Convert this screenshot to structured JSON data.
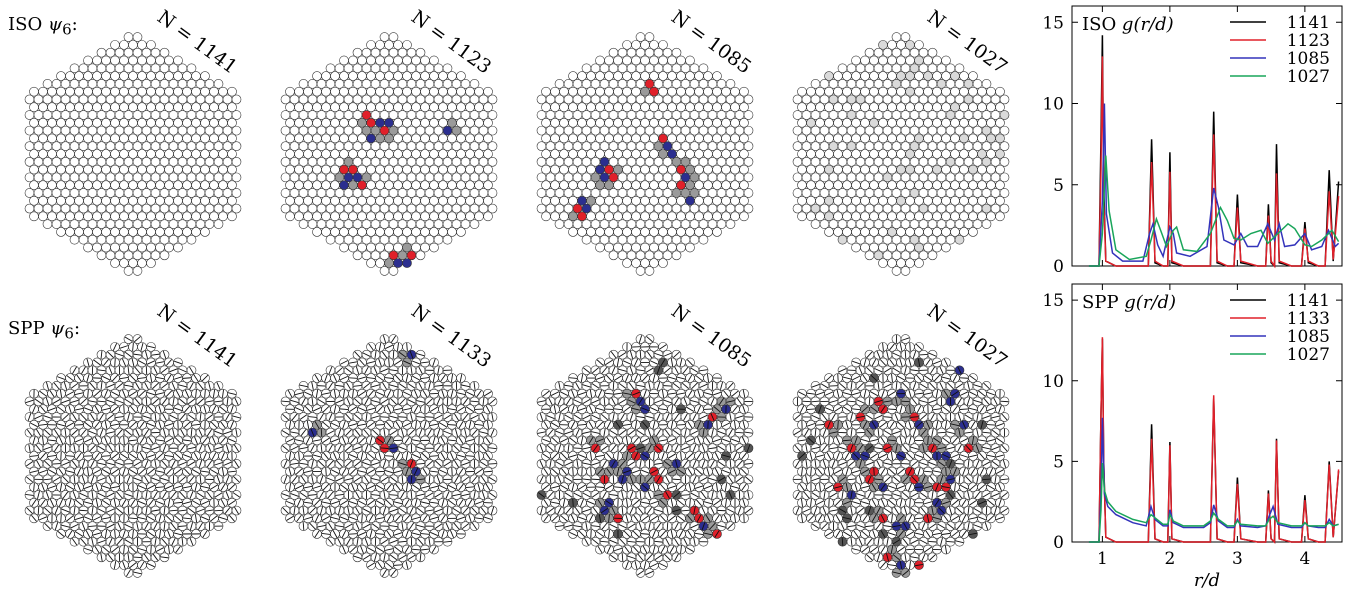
{
  "row_labels": {
    "iso": "ISO",
    "spp": "SPP",
    "psi": "ψ",
    "psi_sub": "6",
    "colon": ":"
  },
  "panels": {
    "iso": [
      {
        "n_label": "N = 1141",
        "n": 1141
      },
      {
        "n_label": "N = 1123",
        "n": 1123
      },
      {
        "n_label": "N = 1085",
        "n": 1085
      },
      {
        "n_label": "N = 1027",
        "n": 1027
      }
    ],
    "spp": [
      {
        "n_label": "N = 1141",
        "n": 1141
      },
      {
        "n_label": "N = 1133",
        "n": 1133
      },
      {
        "n_label": "N = 1085",
        "n": 1085
      },
      {
        "n_label": "N = 1027",
        "n": 1027
      }
    ]
  },
  "colors": {
    "defect_red": "#e0202a",
    "defect_blue": "#2b2e8f",
    "defect_grey": "#8c8c8c",
    "line_1141": "#000000",
    "line_iso_2": "#e0202a",
    "line_spp_2": "#e0202a",
    "line_1085": "#3333bb",
    "line_1027": "#19a55a"
  },
  "chart_data": [
    {
      "type": "line",
      "title": "ISO g(r/d)",
      "title_main": "ISO",
      "title_func": "g(r/d)",
      "xlabel": "",
      "ylabel": "",
      "xlim": [
        0.55,
        4.55
      ],
      "ylim": [
        0,
        16
      ],
      "yticks": [
        0,
        5,
        10,
        15
      ],
      "xticks": [
        1,
        2,
        3,
        4
      ],
      "legend_position": "top-right",
      "series": [
        {
          "name": "1141",
          "color": "#000000",
          "x": [
            0.8,
            0.95,
            0.98,
            1.0,
            1.02,
            1.05,
            1.2,
            1.5,
            1.68,
            1.73,
            1.78,
            1.9,
            1.97,
            2.0,
            2.03,
            2.2,
            2.5,
            2.6,
            2.65,
            2.7,
            2.85,
            2.95,
            3.0,
            3.05,
            3.3,
            3.42,
            3.46,
            3.5,
            3.55,
            3.58,
            3.62,
            3.8,
            3.95,
            4.0,
            4.05,
            4.2,
            4.3,
            4.36,
            4.42,
            4.5
          ],
          "y": [
            0,
            0,
            8,
            14.2,
            5,
            0.3,
            0,
            0,
            0,
            7.8,
            0.2,
            0,
            0,
            7.0,
            0.2,
            0,
            0,
            0,
            9.5,
            0.2,
            0,
            0,
            4.4,
            0.2,
            0,
            0,
            3.8,
            0.2,
            0,
            7.5,
            0.2,
            0,
            0,
            2.7,
            0.2,
            0,
            0,
            5.9,
            0.3,
            5.2
          ]
        },
        {
          "name": "1123",
          "color": "#e0202a",
          "x": [
            0.8,
            0.95,
            0.98,
            1.0,
            1.02,
            1.05,
            1.2,
            1.5,
            1.68,
            1.73,
            1.78,
            1.9,
            1.97,
            2.0,
            2.03,
            2.2,
            2.5,
            2.6,
            2.65,
            2.7,
            2.85,
            2.95,
            3.0,
            3.05,
            3.3,
            3.42,
            3.46,
            3.5,
            3.55,
            3.58,
            3.62,
            3.8,
            3.95,
            4.0,
            4.05,
            4.2,
            4.3,
            4.36,
            4.42,
            4.5
          ],
          "y": [
            0,
            0,
            6,
            12.9,
            4,
            0.3,
            0,
            0,
            0,
            6.4,
            0.3,
            0,
            0,
            5.8,
            0.3,
            0,
            0,
            0,
            8.1,
            0.3,
            0,
            0,
            3.6,
            0.3,
            0,
            0,
            3.1,
            0.3,
            0,
            5.7,
            0.3,
            0,
            0,
            2.3,
            0.3,
            0,
            0,
            4.6,
            0.4,
            4.3
          ]
        },
        {
          "name": "1085",
          "color": "#3333bb",
          "x": [
            0.8,
            0.95,
            1.0,
            1.03,
            1.06,
            1.15,
            1.3,
            1.6,
            1.7,
            1.75,
            1.82,
            1.9,
            2.0,
            2.05,
            2.1,
            2.3,
            2.55,
            2.65,
            2.72,
            2.8,
            2.95,
            3.05,
            3.15,
            3.3,
            3.45,
            3.55,
            3.62,
            3.7,
            3.85,
            4.0,
            4.1,
            4.25,
            4.35,
            4.45,
            4.5
          ],
          "y": [
            0,
            0,
            4,
            10.0,
            3.2,
            0.8,
            0.3,
            0.3,
            2.0,
            2.6,
            1.3,
            0.6,
            2.4,
            2.0,
            0.8,
            0.6,
            1.2,
            4.8,
            3.6,
            1.6,
            1.3,
            2.0,
            1.2,
            1.2,
            2.6,
            1.6,
            2.6,
            1.2,
            1.3,
            2.0,
            1.0,
            1.2,
            2.2,
            1.2,
            1.4
          ]
        },
        {
          "name": "1027",
          "color": "#19a55a",
          "x": [
            0.8,
            0.95,
            1.0,
            1.05,
            1.1,
            1.2,
            1.4,
            1.65,
            1.72,
            1.8,
            1.88,
            1.95,
            2.05,
            2.1,
            2.2,
            2.4,
            2.6,
            2.75,
            2.85,
            2.95,
            3.05,
            3.2,
            3.35,
            3.45,
            3.6,
            3.75,
            3.85,
            4.0,
            4.1,
            4.25,
            4.4,
            4.5
          ],
          "y": [
            0,
            0,
            2,
            6.8,
            3.4,
            1.0,
            0.4,
            0.6,
            1.6,
            2.9,
            2.0,
            1.2,
            2.2,
            2.4,
            1.0,
            0.9,
            2.0,
            3.6,
            2.8,
            1.7,
            1.6,
            2.0,
            2.2,
            1.4,
            2.0,
            2.6,
            2.3,
            1.3,
            1.2,
            1.6,
            2.2,
            1.5
          ]
        }
      ]
    },
    {
      "type": "line",
      "title": "SPP g(r/d)",
      "title_main": "SPP",
      "title_func": "g(r/d)",
      "xlabel": "r/d",
      "ylabel": "",
      "xlim": [
        0.55,
        4.55
      ],
      "ylim": [
        0,
        16
      ],
      "yticks": [
        0,
        5,
        10,
        15
      ],
      "xticks": [
        1,
        2,
        3,
        4
      ],
      "legend_position": "top-right",
      "series": [
        {
          "name": "1141",
          "color": "#000000",
          "x": [
            0.8,
            0.95,
            0.98,
            1.0,
            1.02,
            1.05,
            1.2,
            1.5,
            1.68,
            1.73,
            1.78,
            1.9,
            1.97,
            2.0,
            2.03,
            2.2,
            2.5,
            2.6,
            2.65,
            2.7,
            2.85,
            2.95,
            3.0,
            3.05,
            3.3,
            3.42,
            3.46,
            3.5,
            3.55,
            3.58,
            3.62,
            3.8,
            3.95,
            4.0,
            4.05,
            4.2,
            4.3,
            4.36,
            4.42,
            4.5
          ],
          "y": [
            0,
            0,
            8,
            12.6,
            5,
            0.3,
            0,
            0,
            0,
            7.3,
            0.2,
            0,
            0,
            6.2,
            0.2,
            0,
            0,
            0,
            8.9,
            0.2,
            0,
            0,
            4.0,
            0.2,
            0,
            0,
            3.2,
            0.2,
            0,
            6.4,
            0.2,
            0,
            0,
            2.9,
            0.2,
            0,
            0,
            5.0,
            0.3,
            4.4
          ]
        },
        {
          "name": "1133",
          "color": "#e0202a",
          "x": [
            0.8,
            0.95,
            0.98,
            1.0,
            1.02,
            1.05,
            1.2,
            1.5,
            1.68,
            1.73,
            1.78,
            1.9,
            1.97,
            2.0,
            2.03,
            2.2,
            2.5,
            2.6,
            2.65,
            2.7,
            2.85,
            2.95,
            3.0,
            3.05,
            3.3,
            3.42,
            3.46,
            3.5,
            3.55,
            3.58,
            3.62,
            3.8,
            3.95,
            4.0,
            4.05,
            4.2,
            4.3,
            4.36,
            4.42,
            4.5
          ],
          "y": [
            0,
            0,
            8,
            12.7,
            5,
            0.3,
            0,
            0,
            0,
            6.4,
            0.2,
            0,
            0,
            6.0,
            0.2,
            0,
            0,
            0,
            9.1,
            0.2,
            0,
            0,
            3.6,
            0.2,
            0,
            0,
            3.0,
            0.2,
            0,
            6.3,
            0.2,
            0,
            0,
            2.6,
            0.2,
            0,
            0,
            4.8,
            0.3,
            4.5
          ]
        },
        {
          "name": "1085",
          "color": "#3333bb",
          "x": [
            0.8,
            0.95,
            0.98,
            1.0,
            1.03,
            1.08,
            1.2,
            1.45,
            1.65,
            1.72,
            1.78,
            1.9,
            1.97,
            2.0,
            2.05,
            2.2,
            2.5,
            2.6,
            2.65,
            2.72,
            2.85,
            2.95,
            3.0,
            3.05,
            3.3,
            3.42,
            3.47,
            3.53,
            3.6,
            3.8,
            3.95,
            4.0,
            4.05,
            4.2,
            4.3,
            4.36,
            4.42,
            4.5
          ],
          "y": [
            0,
            0,
            3,
            7.7,
            3.0,
            2.2,
            1.7,
            1.2,
            1.0,
            2.2,
            1.4,
            1.0,
            1.0,
            2.0,
            1.2,
            0.9,
            0.9,
            1.2,
            2.3,
            1.3,
            0.9,
            0.9,
            1.4,
            1.0,
            0.9,
            1.0,
            1.6,
            2.2,
            1.1,
            0.9,
            0.9,
            1.2,
            1.0,
            0.9,
            0.9,
            1.4,
            1.0,
            1.1
          ]
        },
        {
          "name": "1027",
          "color": "#19a55a",
          "x": [
            0.8,
            0.95,
            0.98,
            1.0,
            1.03,
            1.08,
            1.2,
            1.45,
            1.65,
            1.72,
            1.78,
            1.9,
            1.97,
            2.0,
            2.05,
            2.2,
            2.5,
            2.6,
            2.65,
            2.72,
            2.85,
            2.95,
            3.0,
            3.05,
            3.3,
            3.42,
            3.47,
            3.53,
            3.6,
            3.8,
            3.95,
            4.0,
            4.05,
            4.2,
            4.3,
            4.36,
            4.42,
            4.5
          ],
          "y": [
            0,
            0,
            2,
            4.9,
            3.2,
            2.5,
            1.9,
            1.4,
            1.2,
            1.7,
            1.5,
            1.1,
            1.1,
            1.7,
            1.3,
            1.0,
            1.0,
            1.3,
            1.8,
            1.4,
            1.0,
            1.0,
            1.3,
            1.1,
            1.0,
            1.0,
            1.4,
            1.6,
            1.2,
            1.0,
            1.0,
            1.2,
            1.0,
            1.0,
            1.0,
            1.2,
            1.0,
            1.1
          ]
        }
      ]
    }
  ]
}
